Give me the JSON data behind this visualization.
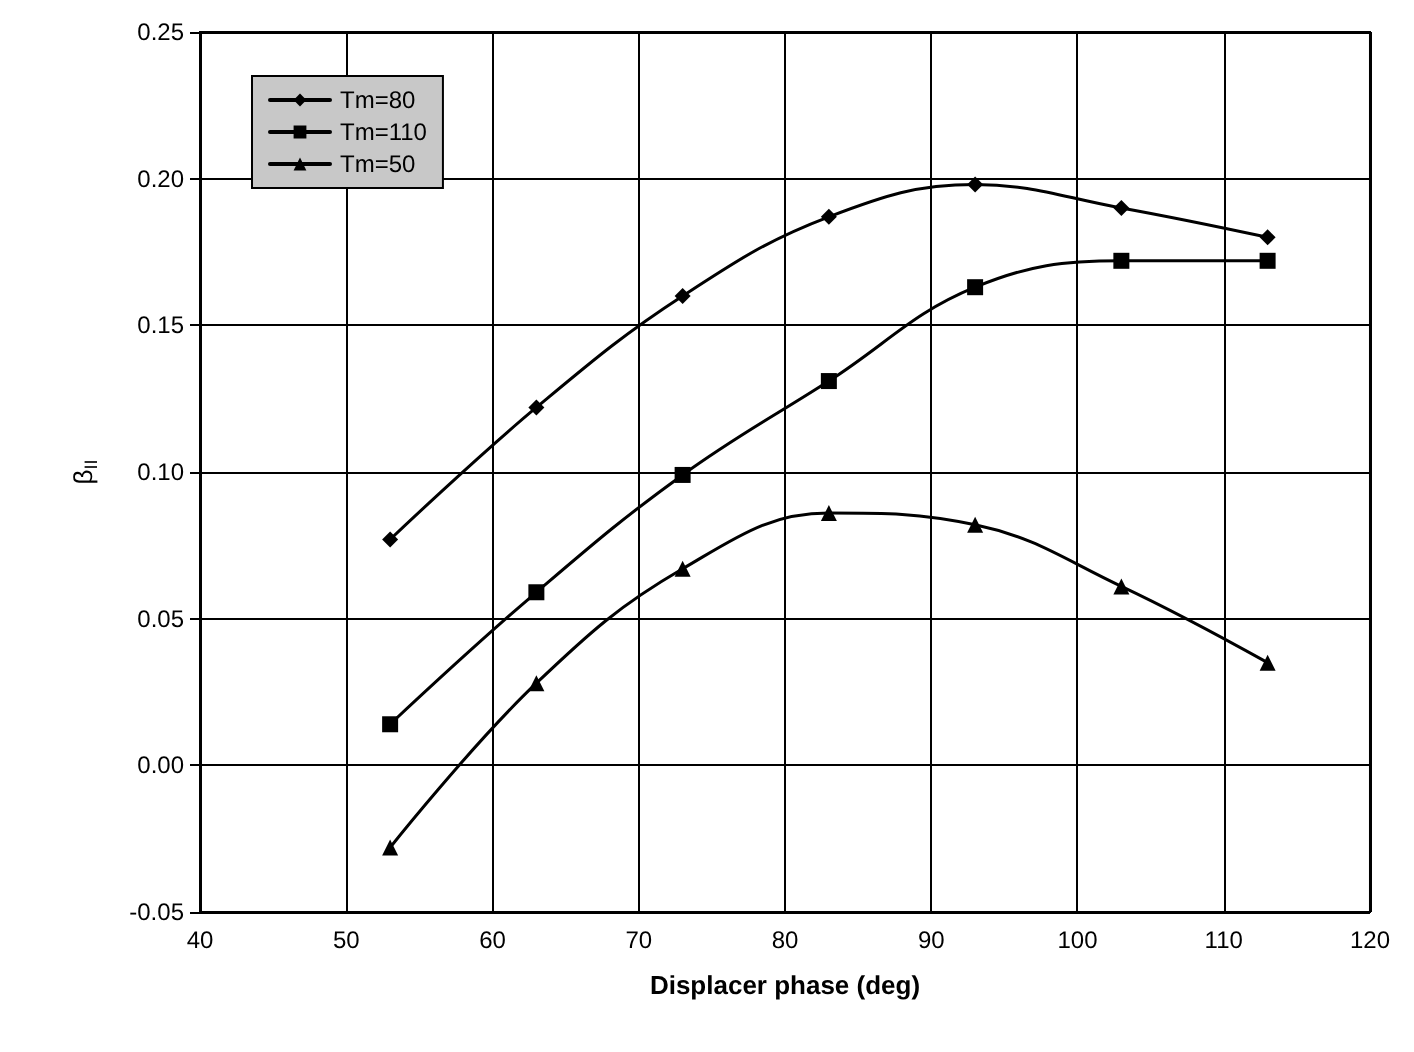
{
  "chart_data": {
    "type": "line",
    "xlabel": "Displacer phase (deg)",
    "ylabel": "β$_{II}$",
    "x": [
      53,
      63,
      73,
      83,
      93,
      103,
      113
    ],
    "series": [
      {
        "name": "Tm=80",
        "color": "#000000",
        "marker": "diamond",
        "values": [
          0.077,
          0.122,
          0.16,
          0.187,
          0.198,
          0.19,
          0.18
        ]
      },
      {
        "name": "Tm=110",
        "color": "#000000",
        "marker": "square",
        "values": [
          0.014,
          0.059,
          0.099,
          0.131,
          0.163,
          0.172,
          0.172
        ]
      },
      {
        "name": "Tm=50",
        "color": "#000000",
        "marker": "triangle",
        "values": [
          -0.028,
          0.028,
          0.067,
          0.086,
          0.082,
          0.061,
          0.035
        ]
      }
    ],
    "xlim": [
      40,
      120
    ],
    "xticks": [
      40,
      50,
      60,
      70,
      80,
      90,
      100,
      110,
      120
    ],
    "ylim": [
      -0.05,
      0.25
    ],
    "yticks": [
      {
        "value": -0.05,
        "label": "-0.05"
      },
      {
        "value": 0,
        "label": "0.00"
      },
      {
        "value": 0.05,
        "label": "0.05"
      },
      {
        "value": 0.1,
        "label": "0.10"
      },
      {
        "value": 0.15,
        "label": "0.15"
      },
      {
        "value": 0.2,
        "label": "0.20"
      },
      {
        "value": 0.25,
        "label": "0.25"
      }
    ],
    "grid": true,
    "legend": "top left",
    "line_style": "solid"
  }
}
